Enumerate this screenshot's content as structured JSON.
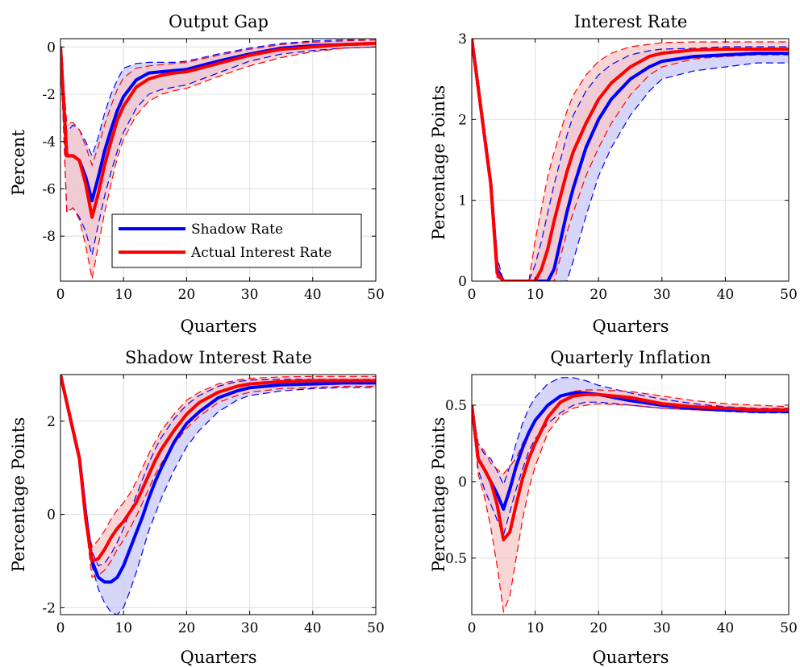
{
  "figure": {
    "colors": {
      "shadow": "#0000ff",
      "actual": "#ff0000",
      "shadow_band": "#c8c8f7",
      "actual_band": "#f7c8c8",
      "overlap_band": "#cfb0d8",
      "grid": "#e0e0e0"
    },
    "legend": {
      "panel": 0,
      "entries": [
        "Shadow Rate",
        "Actual Interest Rate"
      ]
    }
  },
  "chart_data": [
    {
      "type": "line",
      "title": "Output Gap",
      "xlabel": "Quarters",
      "ylabel": "Percent",
      "xlim": [
        0,
        50
      ],
      "ylim": [
        -9.9,
        0.35
      ],
      "xticks": [
        0,
        10,
        20,
        30,
        40,
        50
      ],
      "xtick_labels": [
        "0",
        "10",
        "20",
        "30",
        "40",
        "50"
      ],
      "yticks": [
        0,
        -2,
        -4,
        -6,
        -8
      ],
      "ytick_labels": [
        "0",
        "-2",
        "-4",
        "-6",
        "-8"
      ],
      "grid": true,
      "legend_position": "bottom-center",
      "x": [
        0,
        1,
        2,
        3,
        4,
        5,
        6,
        7,
        8,
        9,
        10,
        12,
        14,
        16,
        18,
        20,
        25,
        30,
        35,
        40,
        45,
        50
      ],
      "series": [
        {
          "name": "Shadow Rate",
          "values": [
            0,
            -4.6,
            -4.6,
            -4.8,
            -5.5,
            -6.5,
            -5.5,
            -4.4,
            -3.5,
            -2.7,
            -2.1,
            -1.4,
            -1.1,
            -1.05,
            -1.0,
            -0.95,
            -0.6,
            -0.3,
            -0.05,
            0.05,
            0.1,
            0.15
          ],
          "lower": [
            0,
            -7.0,
            -6.8,
            -7.2,
            -7.8,
            -8.8,
            -7.5,
            -6.3,
            -5.3,
            -4.4,
            -3.6,
            -2.6,
            -2.0,
            -1.8,
            -1.7,
            -1.6,
            -1.1,
            -0.6,
            -0.3,
            -0.15,
            -0.05,
            0.0
          ],
          "upper": [
            0,
            -3.6,
            -3.3,
            -3.5,
            -4.0,
            -4.6,
            -3.8,
            -2.8,
            -2.0,
            -1.4,
            -0.9,
            -0.7,
            -0.65,
            -0.65,
            -0.65,
            -0.6,
            -0.3,
            -0.05,
            0.15,
            0.25,
            0.3,
            0.3
          ]
        },
        {
          "name": "Actual Interest Rate",
          "values": [
            0,
            -4.6,
            -4.6,
            -4.8,
            -5.8,
            -7.2,
            -6.2,
            -5.0,
            -4.0,
            -3.1,
            -2.5,
            -1.7,
            -1.35,
            -1.2,
            -1.1,
            -1.05,
            -0.7,
            -0.35,
            -0.1,
            0.0,
            0.1,
            0.15
          ],
          "lower": [
            0,
            -7.0,
            -6.8,
            -7.3,
            -8.4,
            -9.8,
            -8.4,
            -7.0,
            -5.8,
            -4.7,
            -3.9,
            -2.9,
            -2.3,
            -2.0,
            -1.85,
            -1.75,
            -1.25,
            -0.8,
            -0.45,
            -0.2,
            -0.05,
            0.0
          ],
          "upper": [
            0,
            -3.2,
            -3.2,
            -3.5,
            -4.2,
            -5.0,
            -4.2,
            -3.3,
            -2.5,
            -1.8,
            -1.3,
            -0.9,
            -0.8,
            -0.75,
            -0.7,
            -0.65,
            -0.35,
            -0.1,
            0.1,
            0.2,
            0.25,
            0.3
          ]
        }
      ]
    },
    {
      "type": "line",
      "title": "Interest Rate",
      "xlabel": "Quarters",
      "ylabel": "Percentage Points",
      "xlim": [
        0,
        50
      ],
      "ylim": [
        0,
        3.0
      ],
      "xticks": [
        0,
        10,
        20,
        30,
        40,
        50
      ],
      "xtick_labels": [
        "0",
        "10",
        "20",
        "30",
        "40",
        "50"
      ],
      "yticks": [
        0,
        1,
        2,
        3
      ],
      "ytick_labels": [
        "0",
        "1",
        "2",
        "3"
      ],
      "grid": true,
      "x": [
        0,
        1,
        2,
        3,
        4,
        5,
        6,
        7,
        8,
        9,
        10,
        11,
        12,
        13,
        14,
        15,
        16,
        18,
        20,
        22,
        25,
        28,
        30,
        35,
        40,
        45,
        50
      ],
      "series": [
        {
          "name": "Shadow Rate",
          "values": [
            3.0,
            2.4,
            1.8,
            1.2,
            0.15,
            0,
            0,
            0,
            0,
            0,
            0,
            0,
            0,
            0.15,
            0.5,
            0.85,
            1.15,
            1.65,
            2.0,
            2.25,
            2.5,
            2.65,
            2.72,
            2.78,
            2.8,
            2.82,
            2.82
          ],
          "lower": [
            3.0,
            2.4,
            1.8,
            1.2,
            0.05,
            0,
            0,
            0,
            0,
            0,
            0,
            0,
            0,
            0,
            0,
            0,
            0.25,
            0.8,
            1.3,
            1.65,
            2.05,
            2.35,
            2.5,
            2.6,
            2.65,
            2.7,
            2.7
          ],
          "upper": [
            3.0,
            2.4,
            1.8,
            1.2,
            0.3,
            0,
            0,
            0,
            0,
            0,
            0.2,
            0.5,
            0.85,
            1.2,
            1.5,
            1.8,
            2.05,
            2.35,
            2.55,
            2.68,
            2.8,
            2.85,
            2.87,
            2.88,
            2.9,
            2.9,
            2.9
          ]
        },
        {
          "name": "Actual Interest Rate",
          "values": [
            3.0,
            2.4,
            1.8,
            1.2,
            0.1,
            0,
            0,
            0,
            0,
            0,
            0,
            0.15,
            0.4,
            0.75,
            1.05,
            1.35,
            1.6,
            1.95,
            2.25,
            2.45,
            2.65,
            2.78,
            2.82,
            2.86,
            2.87,
            2.87,
            2.87
          ],
          "lower": [
            3.0,
            2.4,
            1.8,
            1.2,
            0.05,
            0,
            0,
            0,
            0,
            0,
            0,
            0,
            0,
            0,
            0.3,
            0.6,
            0.85,
            1.3,
            1.65,
            1.95,
            2.3,
            2.55,
            2.65,
            2.75,
            2.78,
            2.8,
            2.8
          ],
          "upper": [
            3.0,
            2.4,
            1.8,
            1.2,
            0.2,
            0,
            0,
            0,
            0,
            0,
            0.5,
            0.9,
            1.3,
            1.6,
            1.85,
            2.1,
            2.3,
            2.55,
            2.72,
            2.82,
            2.9,
            2.93,
            2.95,
            2.96,
            2.96,
            2.96,
            2.96
          ]
        }
      ]
    },
    {
      "type": "line",
      "title": "Shadow Interest Rate",
      "xlabel": "Quarters",
      "ylabel": "Percentage Points",
      "xlim": [
        0,
        50
      ],
      "ylim": [
        -2.15,
        3.0
      ],
      "xticks": [
        0,
        10,
        20,
        30,
        40,
        50
      ],
      "xtick_labels": [
        "0",
        "10",
        "20",
        "30",
        "40",
        "50"
      ],
      "yticks": [
        -2,
        0,
        2
      ],
      "ytick_labels": [
        "-2",
        "0",
        "2"
      ],
      "grid": true,
      "x": [
        0,
        1,
        2,
        3,
        4,
        5,
        6,
        7,
        8,
        9,
        10,
        11,
        12,
        13,
        14,
        15,
        16,
        18,
        20,
        22,
        25,
        28,
        30,
        35,
        40,
        45,
        50
      ],
      "series": [
        {
          "name": "Shadow Rate",
          "values": [
            3.0,
            2.4,
            1.8,
            1.2,
            0.0,
            -1.0,
            -1.35,
            -1.45,
            -1.45,
            -1.35,
            -1.1,
            -0.75,
            -0.4,
            -0.05,
            0.35,
            0.7,
            1.0,
            1.55,
            1.95,
            2.2,
            2.5,
            2.65,
            2.72,
            2.78,
            2.8,
            2.82,
            2.82
          ],
          "lower": [
            3.0,
            2.4,
            1.8,
            1.2,
            -0.1,
            -1.1,
            -1.6,
            -1.9,
            -2.1,
            -2.15,
            -2.0,
            -1.65,
            -1.25,
            -0.8,
            -0.35,
            0.0,
            0.35,
            0.95,
            1.45,
            1.8,
            2.2,
            2.45,
            2.55,
            2.65,
            2.7,
            2.72,
            2.72
          ],
          "upper": [
            3.0,
            2.4,
            1.8,
            1.2,
            0.1,
            -0.8,
            -1.1,
            -1.05,
            -0.85,
            -0.6,
            -0.3,
            0.05,
            0.4,
            0.75,
            1.1,
            1.4,
            1.65,
            2.05,
            2.35,
            2.55,
            2.75,
            2.85,
            2.88,
            2.9,
            2.9,
            2.9,
            2.9
          ]
        },
        {
          "name": "Actual Interest Rate",
          "values": [
            3.0,
            2.4,
            1.8,
            1.2,
            -0.1,
            -1.0,
            -0.95,
            -0.75,
            -0.5,
            -0.3,
            -0.15,
            0.05,
            0.25,
            0.55,
            0.85,
            1.15,
            1.4,
            1.8,
            2.15,
            2.4,
            2.62,
            2.75,
            2.8,
            2.85,
            2.87,
            2.87,
            2.87
          ],
          "lower": [
            3.0,
            2.4,
            1.8,
            1.2,
            -0.2,
            -1.35,
            -1.3,
            -1.2,
            -1.0,
            -0.75,
            -0.55,
            -0.3,
            -0.05,
            0.25,
            0.55,
            0.85,
            1.1,
            1.5,
            1.85,
            2.1,
            2.4,
            2.55,
            2.62,
            2.7,
            2.72,
            2.75,
            2.75
          ],
          "upper": [
            3.0,
            2.4,
            1.8,
            1.2,
            0.0,
            -0.7,
            -0.55,
            -0.35,
            -0.1,
            0.1,
            0.25,
            0.45,
            0.7,
            1.0,
            1.3,
            1.55,
            1.8,
            2.15,
            2.45,
            2.62,
            2.8,
            2.88,
            2.92,
            2.95,
            2.96,
            2.96,
            2.96
          ]
        }
      ]
    },
    {
      "type": "line",
      "title": "Quarterly Inflation",
      "xlabel": "Quarters",
      "ylabel": "Percentage Points",
      "xlim": [
        0,
        50
      ],
      "ylim": [
        -0.87,
        0.7
      ],
      "xticks": [
        0,
        10,
        20,
        30,
        40,
        50
      ],
      "xtick_labels": [
        "0",
        "10",
        "20",
        "30",
        "40",
        "50"
      ],
      "yticks": [
        0.5,
        0,
        -0.5
      ],
      "ytick_labels": [
        "0.5",
        "0",
        "-0.5"
      ],
      "grid": true,
      "x": [
        0,
        1,
        2,
        3,
        4,
        5,
        6,
        7,
        8,
        9,
        10,
        12,
        14,
        16,
        18,
        20,
        25,
        30,
        35,
        40,
        45,
        50
      ],
      "series": [
        {
          "name": "Shadow Rate",
          "values": [
            0.5,
            0.15,
            0.08,
            0.0,
            -0.08,
            -0.18,
            -0.05,
            0.1,
            0.22,
            0.32,
            0.4,
            0.5,
            0.56,
            0.58,
            0.58,
            0.57,
            0.53,
            0.5,
            0.48,
            0.47,
            0.46,
            0.46
          ],
          "lower": [
            0.5,
            0.08,
            -0.05,
            -0.15,
            -0.25,
            -0.35,
            -0.2,
            -0.05,
            0.08,
            0.2,
            0.28,
            0.38,
            0.45,
            0.5,
            0.52,
            0.52,
            0.5,
            0.48,
            0.47,
            0.46,
            0.45,
            0.45
          ],
          "upper": [
            0.5,
            0.25,
            0.18,
            0.15,
            0.07,
            -0.02,
            0.1,
            0.25,
            0.38,
            0.48,
            0.55,
            0.64,
            0.68,
            0.68,
            0.66,
            0.63,
            0.58,
            0.54,
            0.51,
            0.49,
            0.48,
            0.48
          ]
        },
        {
          "name": "Actual Interest Rate",
          "values": [
            0.5,
            0.15,
            0.08,
            0.0,
            -0.15,
            -0.38,
            -0.33,
            -0.15,
            0.02,
            0.15,
            0.25,
            0.42,
            0.52,
            0.56,
            0.57,
            0.57,
            0.55,
            0.51,
            0.49,
            0.48,
            0.47,
            0.47
          ],
          "lower": [
            0.5,
            0.05,
            -0.1,
            -0.3,
            -0.55,
            -0.85,
            -0.75,
            -0.5,
            -0.25,
            -0.05,
            0.1,
            0.32,
            0.43,
            0.48,
            0.5,
            0.51,
            0.5,
            0.48,
            0.47,
            0.46,
            0.46,
            0.46
          ],
          "upper": [
            0.5,
            0.25,
            0.2,
            0.12,
            0.08,
            0.05,
            0.1,
            0.15,
            0.25,
            0.33,
            0.4,
            0.5,
            0.56,
            0.59,
            0.6,
            0.6,
            0.59,
            0.56,
            0.53,
            0.51,
            0.5,
            0.49
          ]
        }
      ]
    }
  ]
}
